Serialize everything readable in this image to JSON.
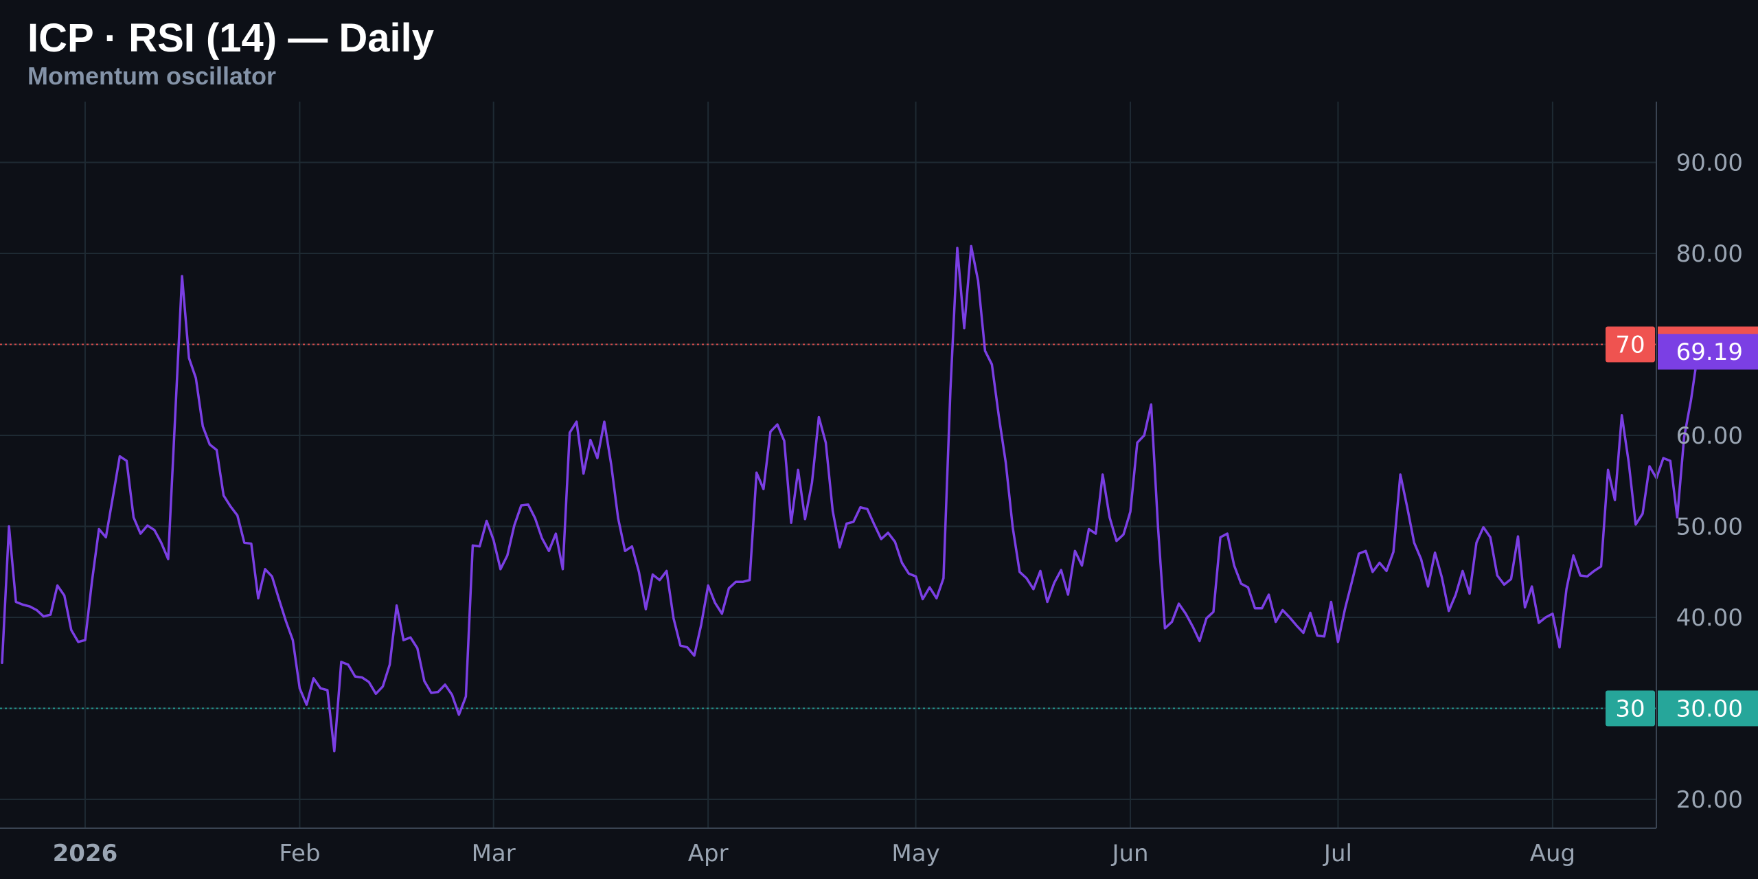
{
  "header": {
    "title": "ICP · RSI (14) — Daily",
    "subtitle": "Momentum oscillator"
  },
  "colors": {
    "background": "#0d1017",
    "grid": "#1e2a33",
    "rsi_line": "#7b3fe4",
    "overbought": "#ef5350",
    "oversold": "#26a69a"
  },
  "chart_data": {
    "type": "line",
    "title": "ICP · RSI (14) — Daily",
    "subtitle": "Momentum oscillator",
    "xlabel": "",
    "ylabel": "",
    "ylim": [
      17,
      97
    ],
    "y_ticks": [
      "20.00",
      "30.00",
      "40.00",
      "50.00",
      "60.00",
      "70.00",
      "80.00",
      "90.00"
    ],
    "x_ticks": [
      {
        "label": "2026",
        "date": "2026-01-01",
        "bold": true
      },
      {
        "label": "Feb",
        "date": "2026-02-01",
        "bold": false
      },
      {
        "label": "Mar",
        "date": "2026-03-01",
        "bold": false
      },
      {
        "label": "Apr",
        "date": "2026-04-01",
        "bold": false
      },
      {
        "label": "May",
        "date": "2026-05-01",
        "bold": false
      },
      {
        "label": "Jun",
        "date": "2026-06-01",
        "bold": false
      },
      {
        "label": "Jul",
        "date": "2026-07-01",
        "bold": false
      },
      {
        "label": "Aug",
        "date": "2026-08-01",
        "bold": false
      }
    ],
    "grid": true,
    "x_start": "2025-12-20",
    "series": [
      {
        "values": [
          35.0,
          50.0,
          41.7,
          41.4,
          41.2,
          40.8,
          40.1,
          40.3,
          43.5,
          42.4,
          38.6,
          37.3,
          37.5,
          44.0,
          49.7,
          48.8,
          53.2,
          57.7,
          57.2,
          51.0,
          49.2,
          50.1,
          49.6,
          48.2,
          46.4,
          62.0,
          77.5,
          68.5,
          66.3,
          61.0,
          59.0,
          58.4,
          53.4,
          52.2,
          51.2,
          48.2,
          48.1,
          42.1,
          45.3,
          44.5,
          42.0,
          39.6,
          37.5,
          32.2,
          30.4,
          33.3,
          32.2,
          32.0,
          25.3,
          35.1,
          34.8,
          33.5,
          33.4,
          32.9,
          31.6,
          32.4,
          34.8,
          41.3,
          37.5,
          37.8,
          36.6,
          33.0,
          31.7,
          31.8,
          32.6,
          31.5,
          29.3,
          31.3,
          47.9,
          47.8,
          50.6,
          48.5,
          45.3,
          46.8,
          50.1,
          52.3,
          52.4,
          50.9,
          48.7,
          47.3,
          49.2,
          45.3,
          60.3,
          61.5,
          55.8,
          59.5,
          57.5,
          61.5,
          56.8,
          50.9,
          47.3,
          47.8,
          45.0,
          40.9,
          44.7,
          44.1,
          45.1,
          39.9,
          36.9,
          36.7,
          35.8,
          39.2,
          43.5,
          41.6,
          40.4,
          43.2,
          43.9,
          43.9,
          44.1,
          55.9,
          54.1,
          60.4,
          61.2,
          59.4,
          50.4,
          56.2,
          50.8,
          54.8,
          62.0,
          59.2,
          51.7,
          47.7,
          50.3,
          50.5,
          52.1,
          51.9,
          50.2,
          48.6,
          49.3,
          48.3,
          46.0,
          44.8,
          44.5,
          42.0,
          43.3,
          42.1,
          44.3,
          65.0,
          80.6,
          71.8,
          80.8,
          77.0,
          69.3,
          67.8,
          62.1,
          57.0,
          49.9,
          45.0,
          44.3,
          43.1,
          45.1,
          41.7,
          43.8,
          45.2,
          42.5,
          47.3,
          45.7,
          49.7,
          49.2,
          55.7,
          51.0,
          48.4,
          49.1,
          51.6,
          59.2,
          60.0,
          63.4,
          49.8,
          38.8,
          39.5,
          41.5,
          40.4,
          39.0,
          37.4,
          39.9,
          40.6,
          48.8,
          49.2,
          45.7,
          43.7,
          43.3,
          41.0,
          41.0,
          42.5,
          39.5,
          40.8,
          40.0,
          39.1,
          38.3,
          40.5,
          38.0,
          37.9,
          41.7,
          37.3,
          40.9,
          43.9,
          47.0,
          47.3,
          45.0,
          46.0,
          45.1,
          47.2,
          55.7,
          52.1,
          48.2,
          46.4,
          43.4,
          47.1,
          44.4,
          40.7,
          42.5,
          45.1,
          42.6,
          48.2,
          49.9,
          48.8,
          44.6,
          43.6,
          44.2,
          48.9,
          41.1,
          43.4,
          39.4,
          40.0,
          40.4,
          36.7,
          43.1,
          46.8,
          44.6,
          44.5,
          45.1,
          45.6,
          56.2,
          52.9,
          62.2,
          57.0,
          50.2,
          51.4,
          56.6,
          55.3,
          57.5,
          57.2,
          51.0,
          59.8,
          63.9,
          69.2
        ]
      }
    ],
    "reference_lines": [
      {
        "value": 70,
        "label": "70",
        "value_label": "70.00",
        "color": "#ef5350"
      },
      {
        "value": 30,
        "label": "30",
        "value_label": "30.00",
        "color": "#26a69a"
      }
    ],
    "last_value": {
      "value": 69.19,
      "label": "69.19"
    }
  }
}
